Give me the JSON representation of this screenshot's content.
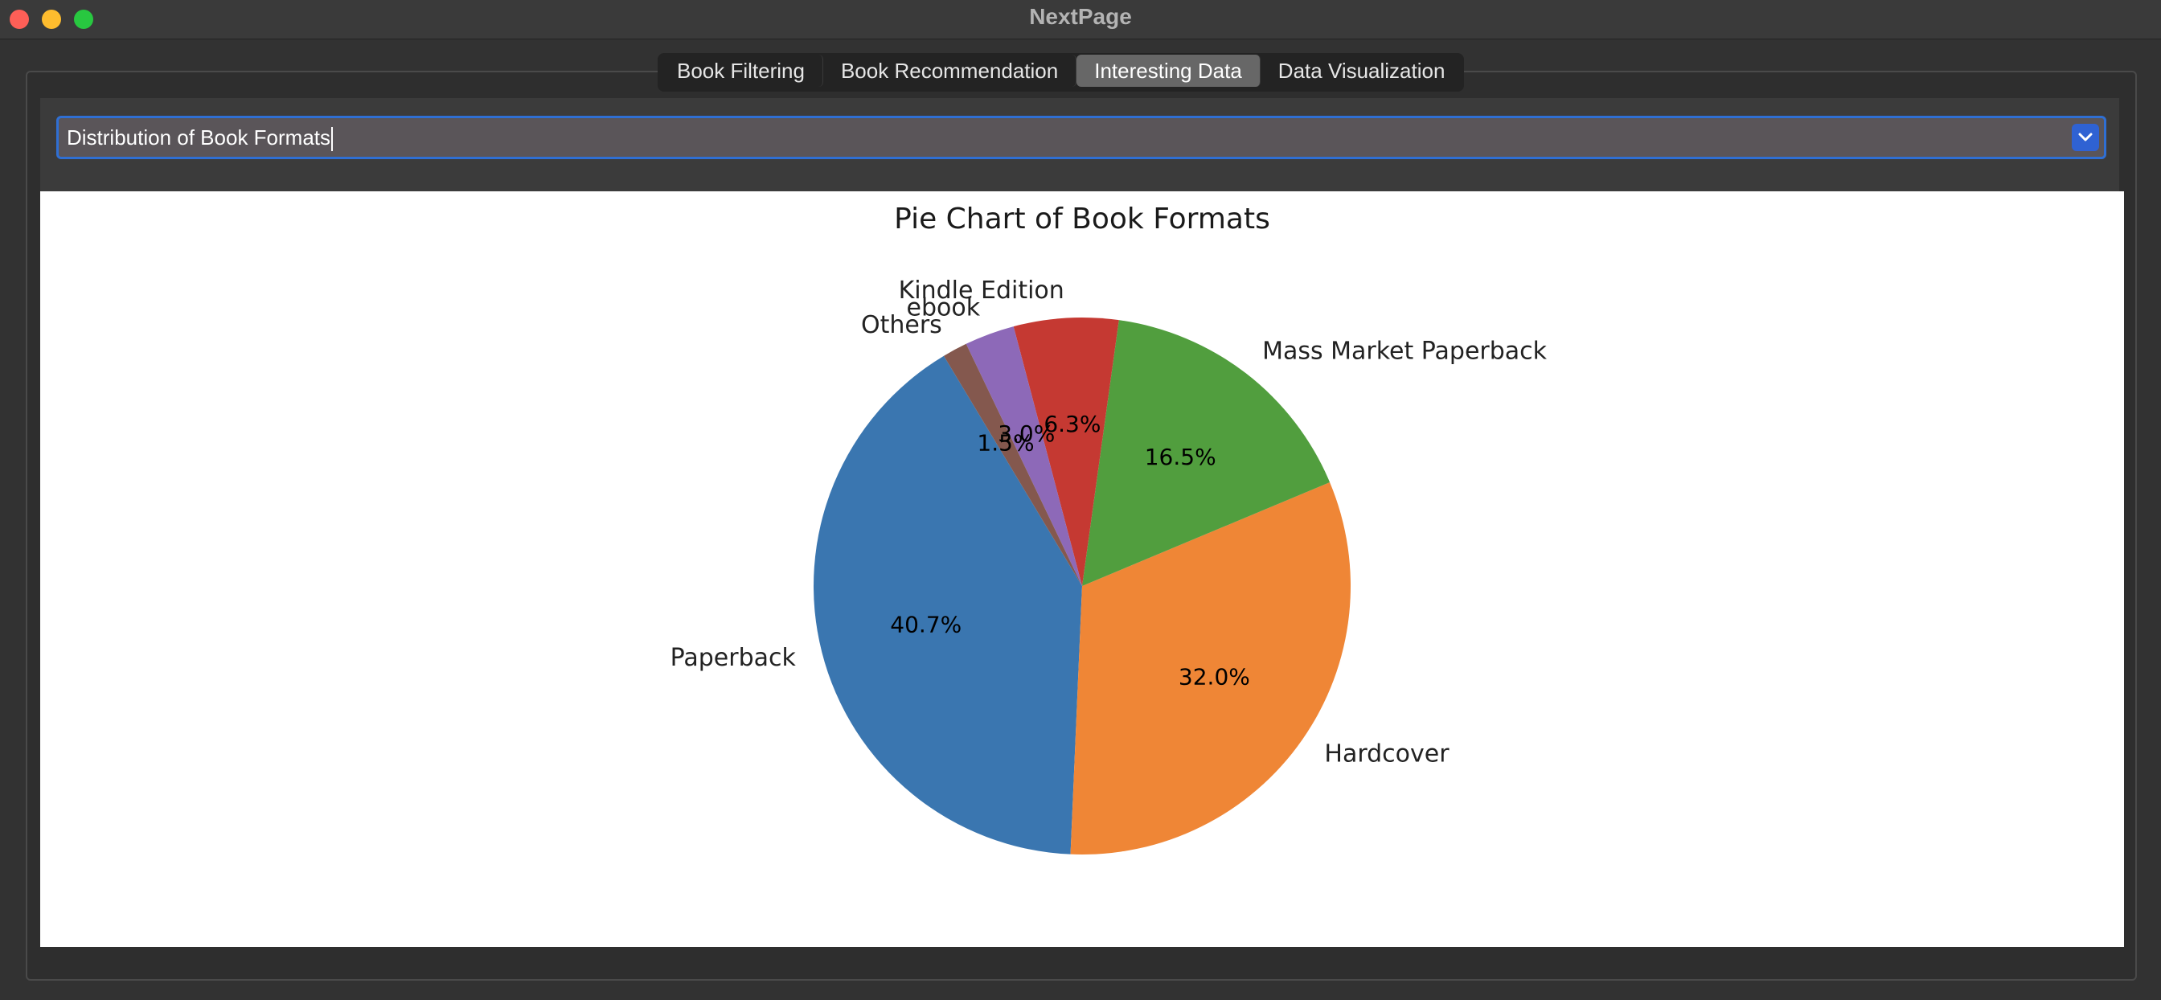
{
  "window": {
    "title": "NextPage"
  },
  "tabs": [
    {
      "label": "Book Filtering"
    },
    {
      "label": "Book Recommendation"
    },
    {
      "label": "Interesting Data",
      "active": true
    },
    {
      "label": "Data Visualization"
    }
  ],
  "selector": {
    "value": "Distribution of Book Formats"
  },
  "icons": {
    "dropdown": "chevron-down-icon"
  },
  "chart_data": {
    "type": "pie",
    "title": "Pie Chart of Book Formats",
    "start_angle_deg": 121,
    "direction": "counterclockwise",
    "slices": [
      {
        "label": "Paperback",
        "value": 40.7,
        "pct_label": "40.7%",
        "color": "#3a76b0"
      },
      {
        "label": "Hardcover",
        "value": 32.0,
        "pct_label": "32.0%",
        "color": "#ef8636"
      },
      {
        "label": "Mass Market Paperback",
        "value": 16.5,
        "pct_label": "16.5%",
        "color": "#519e3e"
      },
      {
        "label": "Kindle Edition",
        "value": 6.3,
        "pct_label": "6.3%",
        "color": "#c53932"
      },
      {
        "label": "ebook",
        "value": 3.0,
        "pct_label": "3.0%",
        "color": "#8d69b8"
      },
      {
        "label": "Others",
        "value": 1.5,
        "pct_label": "1.5%",
        "color": "#84584e"
      }
    ]
  }
}
